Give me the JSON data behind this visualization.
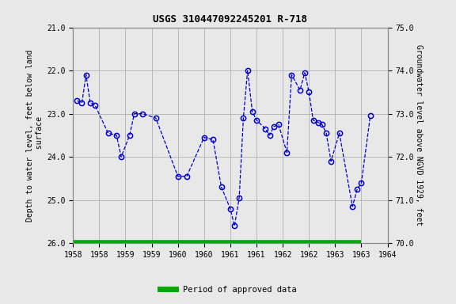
{
  "title": "USGS 310447092245201 R-718",
  "ylabel_left": "Depth to water level, feet below land\n surface",
  "ylabel_right": "Groundwater level above NGVD 1929, feet",
  "ylim_left": [
    26.0,
    21.0
  ],
  "ylim_right": [
    70.0,
    75.0
  ],
  "yticks_left": [
    21.0,
    22.0,
    23.0,
    24.0,
    25.0,
    26.0
  ],
  "yticks_right": [
    70.0,
    71.0,
    72.0,
    73.0,
    74.0,
    75.0
  ],
  "line_color": "#0000cc",
  "marker_color": "#0000cc",
  "background_color": "#e8e8e8",
  "plot_bg_color": "#e8e8e8",
  "grid_color": "#b0b0b0",
  "approved_bar_color": "#00aa00",
  "legend_label": "Period of approved data",
  "x_values": [
    1957.83,
    1957.92,
    1958.0,
    1958.08,
    1958.17,
    1958.42,
    1958.58,
    1958.67,
    1958.83,
    1958.92,
    1959.08,
    1959.33,
    1959.75,
    1959.92,
    1960.25,
    1960.42,
    1960.58,
    1960.75,
    1960.83,
    1960.92,
    1961.0,
    1961.08,
    1961.17,
    1961.25,
    1961.42,
    1961.5,
    1961.58,
    1961.67,
    1961.83,
    1961.92,
    1962.08,
    1962.17,
    1962.25,
    1962.33,
    1962.42,
    1962.5,
    1962.58,
    1962.67,
    1962.83,
    1963.08,
    1963.17,
    1963.25,
    1963.42
  ],
  "y_values": [
    22.7,
    22.75,
    22.1,
    22.75,
    22.8,
    23.45,
    23.5,
    24.0,
    23.5,
    23.0,
    23.0,
    23.1,
    24.45,
    24.45,
    23.55,
    23.6,
    24.7,
    25.2,
    25.6,
    24.95,
    23.1,
    22.0,
    22.95,
    23.15,
    23.35,
    23.5,
    23.3,
    23.25,
    23.9,
    22.1,
    22.45,
    22.05,
    22.5,
    23.15,
    23.2,
    23.25,
    23.45,
    24.1,
    23.45,
    25.15,
    24.75,
    24.6,
    23.05
  ],
  "approved_x_start": 1957.75,
  "approved_x_end": 1963.25,
  "xlim": [
    1957.75,
    1963.75
  ],
  "xtick_positions": [
    1957.75,
    1958.25,
    1958.75,
    1959.25,
    1959.75,
    1960.25,
    1960.75,
    1961.25,
    1961.75,
    1962.25,
    1962.75,
    1963.25,
    1963.75
  ],
  "xtick_labels": [
    "1958",
    "1958",
    "1959",
    "1959",
    "1960",
    "1960",
    "1961",
    "1961",
    "1962",
    "1962",
    "1963",
    "1963",
    "1964"
  ]
}
